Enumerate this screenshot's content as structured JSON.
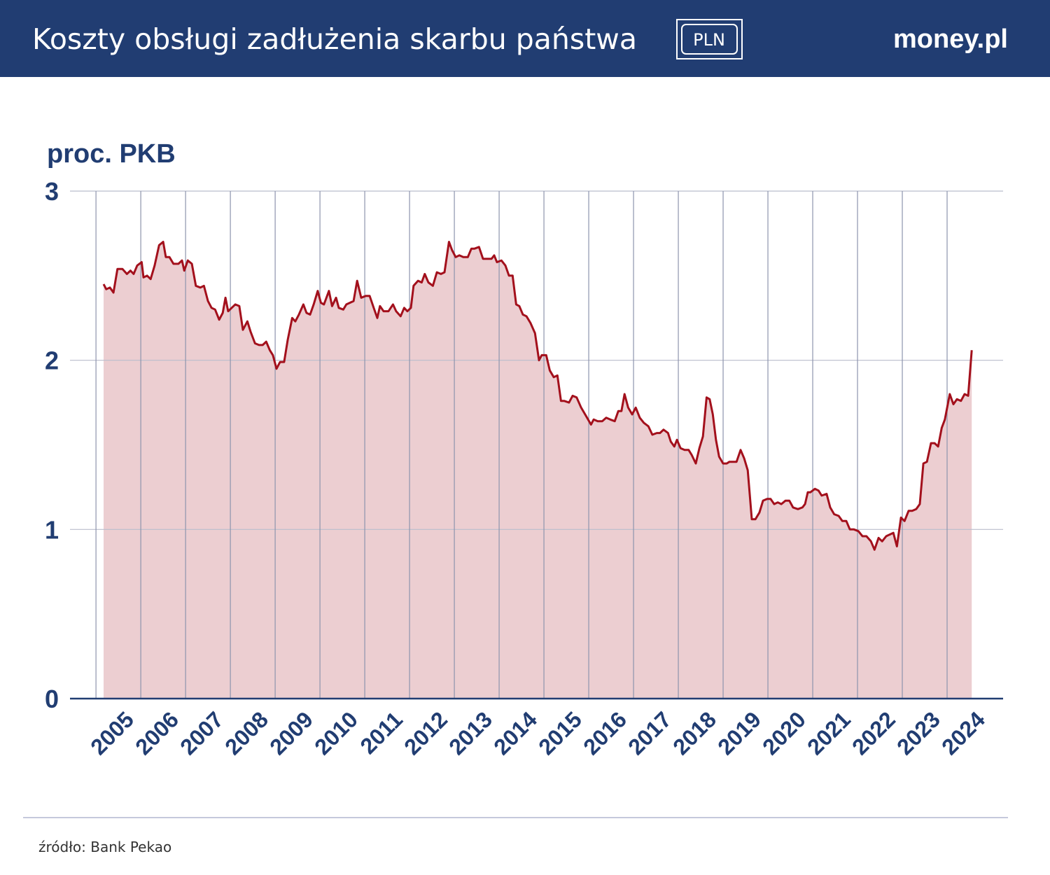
{
  "header": {
    "title": "Koszty obsługi zadłużenia skarbu państwa",
    "badge": "PLN",
    "logo": "money.pl"
  },
  "chart_data": {
    "type": "line",
    "y_label": "proc. PKB",
    "x": [
      2005.17,
      2005.23,
      2005.31,
      2005.39,
      2005.48,
      2005.59,
      2005.69,
      2005.77,
      2005.84,
      2005.92,
      2006.02,
      2006.06,
      2006.14,
      2006.22,
      2006.31,
      2006.41,
      2006.5,
      2006.56,
      2006.64,
      2006.73,
      2006.84,
      2006.92,
      2006.97,
      2007.05,
      2007.14,
      2007.23,
      2007.33,
      2007.41,
      2007.5,
      2007.58,
      2007.66,
      2007.75,
      2007.83,
      2007.89,
      2007.95,
      2008.03,
      2008.11,
      2008.2,
      2008.28,
      2008.38,
      2008.45,
      2008.55,
      2008.64,
      2008.72,
      2008.8,
      2008.88,
      2008.95,
      2009.03,
      2009.11,
      2009.2,
      2009.28,
      2009.38,
      2009.45,
      2009.53,
      2009.63,
      2009.7,
      2009.78,
      2009.86,
      2009.95,
      2010.02,
      2010.09,
      2010.2,
      2010.27,
      2010.36,
      2010.42,
      2010.52,
      2010.59,
      2010.75,
      2010.83,
      2010.92,
      2011.02,
      2011.11,
      2011.2,
      2011.28,
      2011.34,
      2011.42,
      2011.53,
      2011.63,
      2011.7,
      2011.8,
      2011.88,
      2011.95,
      2012.03,
      2012.09,
      2012.19,
      2012.27,
      2012.34,
      2012.42,
      2012.52,
      2012.61,
      2012.7,
      2012.78,
      2012.88,
      2012.95,
      2013.03,
      2013.11,
      2013.2,
      2013.3,
      2013.38,
      2013.45,
      2013.55,
      2013.64,
      2013.75,
      2013.83,
      2013.89,
      2013.95,
      2014.05,
      2014.14,
      2014.22,
      2014.3,
      2014.38,
      2014.45,
      2014.53,
      2014.61,
      2014.7,
      2014.8,
      2014.89,
      2014.95,
      2015.05,
      2015.13,
      2015.22,
      2015.3,
      2015.38,
      2015.45,
      2015.56,
      2015.64,
      2015.73,
      2015.83,
      2015.92,
      2016.05,
      2016.11,
      2016.2,
      2016.3,
      2016.39,
      2016.48,
      2016.58,
      2016.66,
      2016.73,
      2016.8,
      2016.88,
      2016.97,
      2017.05,
      2017.14,
      2017.23,
      2017.33,
      2017.42,
      2017.52,
      2017.59,
      2017.67,
      2017.77,
      2017.83,
      2017.91,
      2017.97,
      2018.05,
      2018.14,
      2018.23,
      2018.3,
      2018.39,
      2018.47,
      2018.55,
      2018.63,
      2018.7,
      2018.77,
      2018.84,
      2018.91,
      2019.0,
      2019.08,
      2019.14,
      2019.23,
      2019.3,
      2019.39,
      2019.47,
      2019.55,
      2019.64,
      2019.72,
      2019.81,
      2019.89,
      2019.98,
      2020.06,
      2020.14,
      2020.22,
      2020.3,
      2020.39,
      2020.48,
      2020.56,
      2020.67,
      2020.77,
      2020.83,
      2020.89,
      2020.95,
      2021.05,
      2021.13,
      2021.2,
      2021.31,
      2021.39,
      2021.48,
      2021.58,
      2021.66,
      2021.75,
      2021.83,
      2021.92,
      2022.02,
      2022.11,
      2022.2,
      2022.3,
      2022.38,
      2022.47,
      2022.55,
      2022.64,
      2022.72,
      2022.8,
      2022.88,
      2022.97,
      2023.05,
      2023.14,
      2023.22,
      2023.31,
      2023.39,
      2023.47,
      2023.55,
      2023.64,
      2023.72,
      2023.8,
      2023.88,
      2023.95,
      2024.06,
      2024.14,
      2024.22,
      2024.31,
      2024.39,
      2024.47,
      2024.55
    ],
    "series": [
      {
        "color": "#a3101c",
        "fill": "#ecced1",
        "values": [
          2.45,
          2.42,
          2.43,
          2.4,
          2.54,
          2.54,
          2.51,
          2.53,
          2.51,
          2.56,
          2.58,
          2.49,
          2.5,
          2.48,
          2.56,
          2.68,
          2.7,
          2.61,
          2.61,
          2.57,
          2.57,
          2.59,
          2.53,
          2.59,
          2.57,
          2.44,
          2.43,
          2.44,
          2.35,
          2.31,
          2.3,
          2.24,
          2.28,
          2.37,
          2.29,
          2.31,
          2.33,
          2.32,
          2.18,
          2.23,
          2.17,
          2.1,
          2.09,
          2.09,
          2.11,
          2.06,
          2.03,
          1.95,
          1.99,
          1.99,
          2.12,
          2.25,
          2.23,
          2.27,
          2.33,
          2.28,
          2.27,
          2.33,
          2.41,
          2.34,
          2.33,
          2.41,
          2.32,
          2.37,
          2.31,
          2.3,
          2.33,
          2.35,
          2.47,
          2.37,
          2.38,
          2.38,
          2.31,
          2.25,
          2.32,
          2.29,
          2.29,
          2.33,
          2.29,
          2.26,
          2.31,
          2.29,
          2.31,
          2.44,
          2.47,
          2.46,
          2.51,
          2.46,
          2.44,
          2.52,
          2.51,
          2.52,
          2.7,
          2.65,
          2.61,
          2.62,
          2.61,
          2.61,
          2.66,
          2.66,
          2.67,
          2.6,
          2.6,
          2.6,
          2.62,
          2.58,
          2.59,
          2.56,
          2.5,
          2.5,
          2.33,
          2.32,
          2.27,
          2.26,
          2.22,
          2.16,
          2.0,
          2.03,
          2.03,
          1.94,
          1.9,
          1.91,
          1.76,
          1.76,
          1.75,
          1.79,
          1.78,
          1.72,
          1.68,
          1.62,
          1.65,
          1.64,
          1.64,
          1.66,
          1.65,
          1.64,
          1.7,
          1.7,
          1.8,
          1.72,
          1.68,
          1.72,
          1.66,
          1.63,
          1.61,
          1.56,
          1.57,
          1.57,
          1.59,
          1.57,
          1.52,
          1.49,
          1.53,
          1.48,
          1.47,
          1.47,
          1.44,
          1.39,
          1.48,
          1.55,
          1.78,
          1.77,
          1.68,
          1.53,
          1.43,
          1.39,
          1.39,
          1.4,
          1.4,
          1.4,
          1.47,
          1.42,
          1.35,
          1.06,
          1.06,
          1.1,
          1.17,
          1.18,
          1.18,
          1.15,
          1.16,
          1.15,
          1.17,
          1.17,
          1.13,
          1.12,
          1.13,
          1.15,
          1.22,
          1.22,
          1.24,
          1.23,
          1.2,
          1.21,
          1.13,
          1.09,
          1.08,
          1.05,
          1.05,
          1.0,
          1.0,
          0.99,
          0.96,
          0.96,
          0.93,
          0.88,
          0.95,
          0.93,
          0.96,
          0.97,
          0.98,
          0.9,
          1.07,
          1.05,
          1.11,
          1.11,
          1.12,
          1.15,
          1.39,
          1.4,
          1.51,
          1.51,
          1.49,
          1.6,
          1.65,
          1.8,
          1.74,
          1.77,
          1.76,
          1.8,
          1.79,
          2.06
        ]
      }
    ],
    "xlim": [
      2004.42,
      2025.25
    ],
    "xticks": [
      2005,
      2006,
      2007,
      2008,
      2009,
      2010,
      2011,
      2012,
      2013,
      2014,
      2015,
      2016,
      2017,
      2018,
      2019,
      2020,
      2021,
      2022,
      2023,
      2024
    ],
    "ylim": [
      0,
      3
    ],
    "yticks": [
      0,
      1,
      2,
      3
    ],
    "grid": true
  },
  "footer": {
    "source": "źródło: Bank Pekao"
  }
}
